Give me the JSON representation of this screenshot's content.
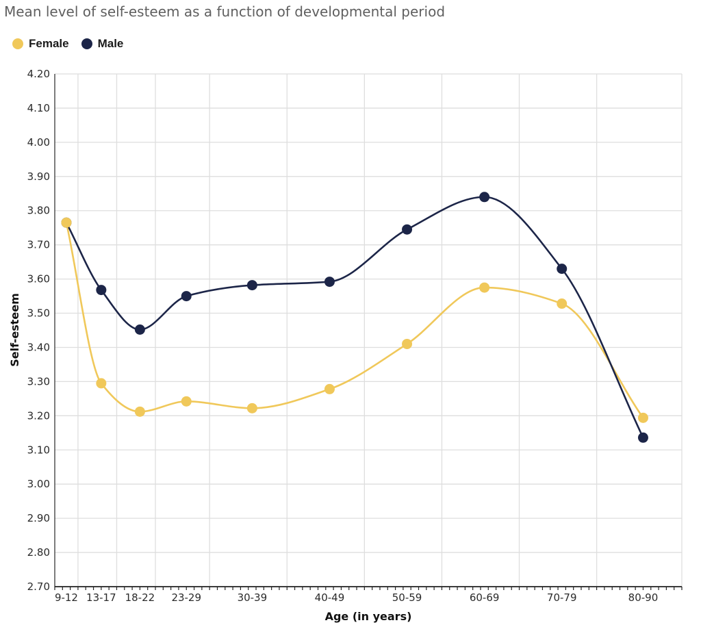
{
  "chart_data": {
    "type": "line",
    "title": "Mean level of self-esteem as a function of developmental period",
    "xlabel": "Age (in years)",
    "ylabel": "Self-esteem",
    "categories": [
      "9-12",
      "13-17",
      "18-22",
      "23-29",
      "30-39",
      "40-49",
      "50-59",
      "60-69",
      "70-79",
      "80-90"
    ],
    "x_ages": [
      10.5,
      15,
      20,
      26,
      34.5,
      44.5,
      54.5,
      64.5,
      74.5,
      85
    ],
    "y_ticks": [
      "2.70",
      "2.80",
      "2.90",
      "3.00",
      "3.10",
      "3.20",
      "3.30",
      "3.40",
      "3.50",
      "3.60",
      "3.70",
      "3.80",
      "3.90",
      "4.00",
      "4.10",
      "4.20"
    ],
    "ylim": [
      2.7,
      4.2
    ],
    "grid": true,
    "legend_position": "top-left",
    "series": [
      {
        "name": "Female",
        "color": "#f0c85a",
        "values": [
          3.765,
          3.295,
          3.212,
          3.242,
          3.222,
          3.278,
          3.41,
          3.575,
          3.528,
          3.194
        ]
      },
      {
        "name": "Male",
        "color": "#1c2548",
        "values": [
          3.765,
          3.568,
          3.452,
          3.55,
          3.582,
          3.592,
          3.745,
          3.84,
          3.63,
          3.136
        ]
      }
    ]
  }
}
